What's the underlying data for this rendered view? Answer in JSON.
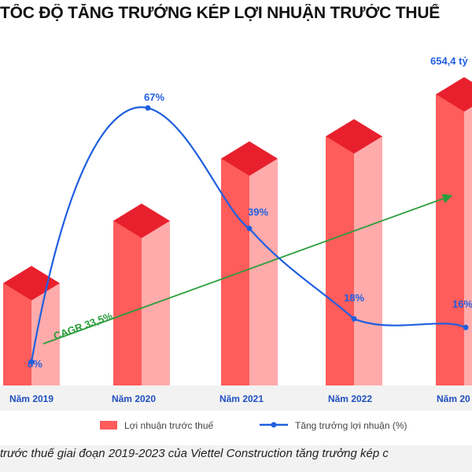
{
  "page": {
    "title": "TỐC ĐỘ TĂNG TRƯỞNG KÉP LỢI NHUẬN TRƯỚC THUẾ",
    "caption": "trước thuế giai đoạn 2019-2023 của Viettel Construction tăng trưởng kép c"
  },
  "chart_data": {
    "type": "bar",
    "categories": [
      "Năm 2019",
      "Năm 2020",
      "Năm 2021",
      "Năm 2022",
      "Năm 20"
    ],
    "series": [
      {
        "name": "Lợi nhuận trước thuế",
        "type": "bar",
        "color": "#ff5c5c",
        "values": [
          230,
          370,
          510,
          560,
          654.4
        ],
        "labels": [
          "",
          "",
          "",
          "",
          "654,4 tỷ"
        ]
      },
      {
        "name": "Tăng trưởng lợi nhuận (%)",
        "type": "line",
        "color": "#1f5fe0",
        "values": [
          8,
          67,
          39,
          18,
          16
        ],
        "labels": [
          "8%",
          "67%",
          "39%",
          "18%",
          "16%"
        ]
      }
    ],
    "annotations": [
      {
        "text": "CAGR 33,5%",
        "color": "#2a9d3a"
      }
    ],
    "legend": {
      "placement": "bottom"
    },
    "grid": false
  }
}
